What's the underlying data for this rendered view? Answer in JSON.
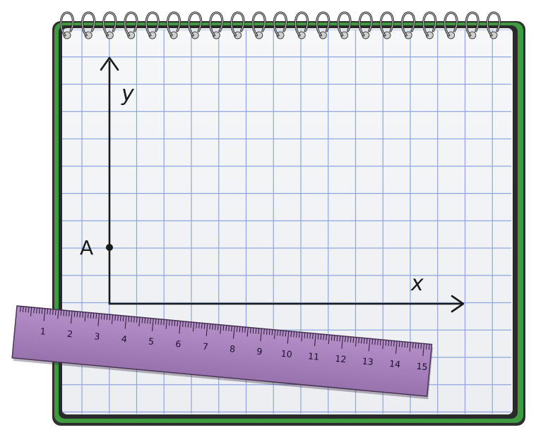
{
  "diagram": {
    "axis_x_label": "x",
    "axis_y_label": "y",
    "point_label": "A"
  },
  "ruler": {
    "numbers": [
      "1",
      "2",
      "3",
      "4",
      "5",
      "6",
      "7",
      "8",
      "9",
      "10",
      "11",
      "12",
      "13",
      "14",
      "15"
    ]
  },
  "colors": {
    "notebook_cover": "#3f9b3f",
    "grid_line": "#8fa6dd",
    "paper": "#f4f5f7",
    "ruler_fill": "#a07ab6",
    "axis": "#1a1a1a"
  }
}
